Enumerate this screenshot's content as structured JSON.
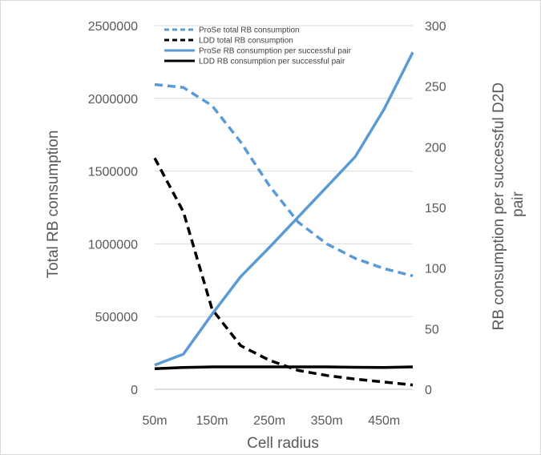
{
  "chart_data": {
    "type": "line",
    "x": [
      50,
      100,
      150,
      200,
      250,
      300,
      350,
      400,
      450,
      500
    ],
    "x_tick_labels": [
      "50m",
      "150m",
      "250m",
      "350m",
      "450m"
    ],
    "xlabel": "Cell radius",
    "ylabel_left": "Total RB consumption",
    "ylabel_right_lines": [
      "RB consumption per successful D2D",
      "pair"
    ],
    "ylim_left": [
      0,
      2500000
    ],
    "ylim_right": [
      0,
      300
    ],
    "y_left_ticks": [
      "0",
      "500000",
      "1000000",
      "1500000",
      "2000000",
      "2500000"
    ],
    "y_right_ticks": [
      "0",
      "50",
      "100",
      "150",
      "200",
      "250",
      "300"
    ],
    "grid": true,
    "legend_position": "top",
    "series": [
      {
        "name": "ProSe total RB consumption",
        "axis": "left",
        "style": "dashed",
        "color": "#5b9bd5",
        "values": [
          2095000,
          2075000,
          1950000,
          1700000,
          1400000,
          1150000,
          1000000,
          900000,
          830000,
          780000
        ]
      },
      {
        "name": "LDD total RB consumption",
        "axis": "left",
        "style": "dashed",
        "color": "#000000",
        "values": [
          1590000,
          1220000,
          550000,
          300000,
          200000,
          130000,
          95000,
          70000,
          50000,
          30000
        ]
      },
      {
        "name": "ProSe RB consumption per successful pair",
        "axis": "right",
        "style": "solid",
        "color": "#5b9bd5",
        "values": [
          20,
          29,
          62,
          93,
          117,
          142,
          167,
          192,
          231,
          278
        ]
      },
      {
        "name": "LDD RB consumption per successful pair",
        "axis": "right",
        "style": "solid",
        "color": "#000000",
        "values": [
          17,
          18,
          18.5,
          18.5,
          18.5,
          18.5,
          18.5,
          18.2,
          18,
          18.5
        ]
      }
    ]
  }
}
